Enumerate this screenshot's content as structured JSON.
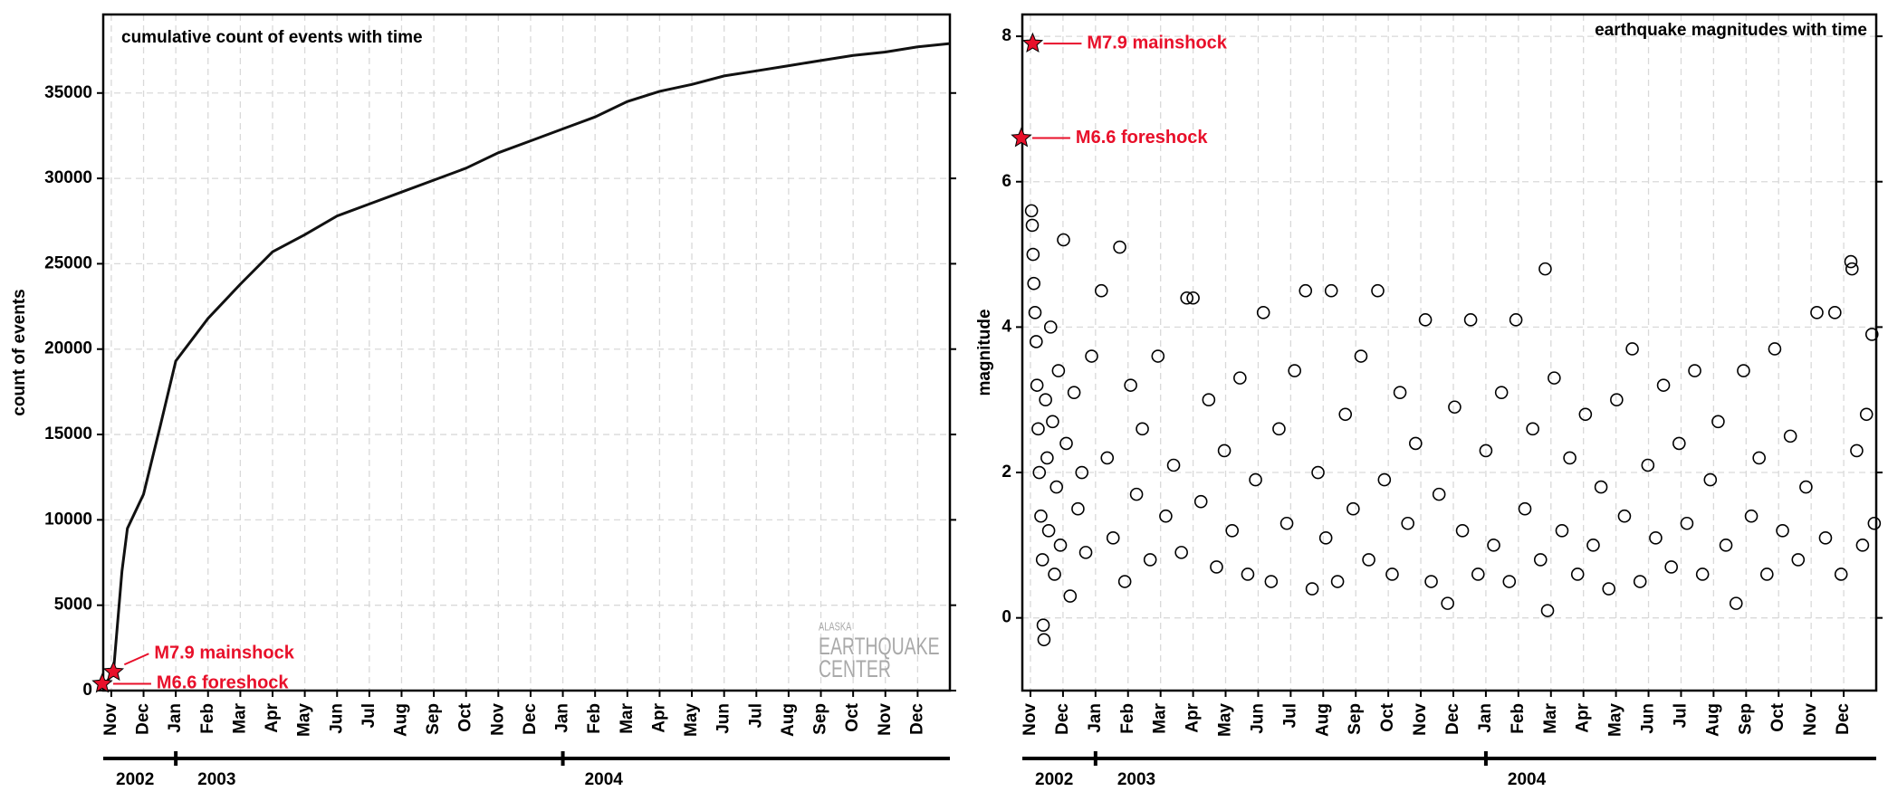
{
  "chart_data": [
    {
      "type": "line",
      "title": "cumulative count of events with time",
      "ylabel": "count of events",
      "color": "#111111",
      "grid": true,
      "x": [
        2002.81,
        2002.839,
        2002.861,
        2002.875,
        2002.9167,
        2002.96,
        2003.0,
        2003.0833,
        2003.1667,
        2003.25,
        2003.3333,
        2003.4167,
        2003.5,
        2003.5833,
        2003.6667,
        2003.75,
        2003.8333,
        2003.9167,
        2004.0,
        2004.0833,
        2004.1667,
        2004.25,
        2004.3333,
        2004.4167,
        2004.5,
        2004.5833,
        2004.6667,
        2004.75,
        2004.8333,
        2004.9167,
        2005.0
      ],
      "values": [
        100,
        1100,
        7000,
        9500,
        11500,
        15500,
        19300,
        21800,
        23800,
        25700,
        26700,
        27800,
        28500,
        29200,
        29900,
        30600,
        31500,
        32200,
        32900,
        33600,
        34500,
        35100,
        35500,
        36000,
        36300,
        36600,
        36900,
        37200,
        37400,
        37700,
        37900
      ],
      "xlim": [
        2002.8125,
        2005.0
      ],
      "ylim": [
        0,
        39600
      ],
      "yticks": [
        0,
        5000,
        10000,
        15000,
        20000,
        25000,
        30000,
        35000
      ],
      "xticks": [
        {
          "value": 2002.8333,
          "label": "Nov"
        },
        {
          "value": 2002.9167,
          "label": "Dec"
        },
        {
          "value": 2003.0,
          "label": "Jan"
        },
        {
          "value": 2003.0833,
          "label": "Feb"
        },
        {
          "value": 2003.1667,
          "label": "Mar"
        },
        {
          "value": 2003.25,
          "label": "Apr"
        },
        {
          "value": 2003.3333,
          "label": "May"
        },
        {
          "value": 2003.4167,
          "label": "Jun"
        },
        {
          "value": 2003.5,
          "label": "Jul"
        },
        {
          "value": 2003.5833,
          "label": "Aug"
        },
        {
          "value": 2003.6667,
          "label": "Sep"
        },
        {
          "value": 2003.75,
          "label": "Oct"
        },
        {
          "value": 2003.8333,
          "label": "Nov"
        },
        {
          "value": 2003.9167,
          "label": "Dec"
        },
        {
          "value": 2004.0,
          "label": "Jan"
        },
        {
          "value": 2004.0833,
          "label": "Feb"
        },
        {
          "value": 2004.1667,
          "label": "Mar"
        },
        {
          "value": 2004.25,
          "label": "Apr"
        },
        {
          "value": 2004.3333,
          "label": "May"
        },
        {
          "value": 2004.4167,
          "label": "Jun"
        },
        {
          "value": 2004.5,
          "label": "Jul"
        },
        {
          "value": 2004.5833,
          "label": "Aug"
        },
        {
          "value": 2004.6667,
          "label": "Sep"
        },
        {
          "value": 2004.75,
          "label": "Oct"
        },
        {
          "value": 2004.8333,
          "label": "Nov"
        },
        {
          "value": 2004.9167,
          "label": "Dec"
        }
      ],
      "year_ticks": [
        {
          "value": 2002.8125,
          "label": "2002"
        },
        {
          "value": 2003.0,
          "label": "2003"
        },
        {
          "value": 2004.0,
          "label": "2004"
        }
      ],
      "annotations": [
        {
          "text": "M7.9 mainshock",
          "x": 2002.839,
          "y": 1100,
          "color": "#e8102a"
        },
        {
          "text": "M6.6 foreshock",
          "x": 2002.81,
          "y": 400,
          "color": "#e8102a"
        }
      ],
      "logo": [
        "ALASKA",
        "EARTHQUAKE",
        "CENTER"
      ]
    },
    {
      "type": "scatter",
      "title": "earthquake magnitudes with time",
      "ylabel": "magnitude",
      "color": "#000000",
      "grid": true,
      "x": [
        2002.836,
        2002.838,
        2002.84,
        2002.842,
        2002.845,
        2002.848,
        2002.85,
        2002.853,
        2002.856,
        2002.86,
        2002.864,
        2002.866,
        2002.868,
        2002.872,
        2002.876,
        2002.88,
        2002.885,
        2002.89,
        2002.895,
        2002.9,
        2002.905,
        2002.91,
        2002.918,
        2002.925,
        2002.935,
        2002.945,
        2002.955,
        2002.965,
        2002.975,
        2002.99,
        2003.015,
        2003.03,
        2003.045,
        2003.062,
        2003.075,
        2003.09,
        2003.105,
        2003.12,
        2003.14,
        2003.16,
        2003.18,
        2003.2,
        2003.22,
        2003.234,
        2003.25,
        2003.27,
        2003.29,
        2003.31,
        2003.33,
        2003.35,
        2003.37,
        2003.39,
        2003.41,
        2003.43,
        2003.45,
        2003.47,
        2003.49,
        2003.51,
        2003.538,
        2003.555,
        2003.57,
        2003.59,
        2003.604,
        2003.62,
        2003.64,
        2003.66,
        2003.68,
        2003.7,
        2003.723,
        2003.74,
        2003.76,
        2003.78,
        2003.8,
        2003.82,
        2003.845,
        2003.86,
        2003.88,
        2003.902,
        2003.92,
        2003.94,
        2003.961,
        2003.98,
        2004.0,
        2004.02,
        2004.04,
        2004.06,
        2004.077,
        2004.1,
        2004.12,
        2004.14,
        2004.152,
        2004.158,
        2004.175,
        2004.195,
        2004.215,
        2004.235,
        2004.255,
        2004.275,
        2004.295,
        2004.315,
        2004.335,
        2004.355,
        2004.375,
        2004.395,
        2004.415,
        2004.435,
        2004.455,
        2004.475,
        2004.495,
        2004.515,
        2004.535,
        2004.555,
        2004.575,
        2004.595,
        2004.615,
        2004.641,
        2004.66,
        2004.68,
        2004.7,
        2004.72,
        2004.74,
        2004.76,
        2004.78,
        2004.8,
        2004.82,
        2004.848,
        2004.87,
        2004.894,
        2004.91,
        2004.935,
        2004.938,
        2004.95,
        2004.965,
        2004.975,
        2004.989,
        2004.995
      ],
      "values": [
        5.6,
        5.4,
        5.0,
        4.6,
        4.2,
        3.8,
        3.2,
        2.6,
        2.0,
        1.4,
        0.8,
        -0.1,
        -0.3,
        3.0,
        2.2,
        1.2,
        4.0,
        2.7,
        0.6,
        1.8,
        3.4,
        1.0,
        5.2,
        2.4,
        0.3,
        3.1,
        1.5,
        2.0,
        0.9,
        3.6,
        4.5,
        2.2,
        1.1,
        5.1,
        0.5,
        3.2,
        1.7,
        2.6,
        0.8,
        3.6,
        1.4,
        2.1,
        0.9,
        4.4,
        4.4,
        1.6,
        3.0,
        0.7,
        2.3,
        1.2,
        3.3,
        0.6,
        1.9,
        4.2,
        0.5,
        2.6,
        1.3,
        3.4,
        4.5,
        0.4,
        2.0,
        1.1,
        4.5,
        0.5,
        2.8,
        1.5,
        3.6,
        0.8,
        4.5,
        1.9,
        0.6,
        3.1,
        1.3,
        2.4,
        4.1,
        0.5,
        1.7,
        0.2,
        2.9,
        1.2,
        4.1,
        0.6,
        2.3,
        1.0,
        3.1,
        0.5,
        4.1,
        1.5,
        2.6,
        0.8,
        4.8,
        0.1,
        3.3,
        1.2,
        2.2,
        0.6,
        2.8,
        1.0,
        1.8,
        0.4,
        3.0,
        1.4,
        3.7,
        0.5,
        2.1,
        1.1,
        3.2,
        0.7,
        2.4,
        1.3,
        3.4,
        0.6,
        1.9,
        2.7,
        1.0,
        0.2,
        3.4,
        1.4,
        2.2,
        0.6,
        3.7,
        1.2,
        2.5,
        0.8,
        1.8,
        4.2,
        1.1,
        4.2,
        0.6,
        4.9,
        4.8,
        2.3,
        1.0,
        2.8,
        3.9,
        1.3
      ],
      "xlim": [
        2002.8125,
        2005.0
      ],
      "ylim": [
        -1,
        8.3
      ],
      "yticks": [
        0,
        2,
        4,
        6,
        8
      ],
      "xticks": [
        {
          "value": 2002.8333,
          "label": "Nov"
        },
        {
          "value": 2002.9167,
          "label": "Dec"
        },
        {
          "value": 2003.0,
          "label": "Jan"
        },
        {
          "value": 2003.0833,
          "label": "Feb"
        },
        {
          "value": 2003.1667,
          "label": "Mar"
        },
        {
          "value": 2003.25,
          "label": "Apr"
        },
        {
          "value": 2003.3333,
          "label": "May"
        },
        {
          "value": 2003.4167,
          "label": "Jun"
        },
        {
          "value": 2003.5,
          "label": "Jul"
        },
        {
          "value": 2003.5833,
          "label": "Aug"
        },
        {
          "value": 2003.6667,
          "label": "Sep"
        },
        {
          "value": 2003.75,
          "label": "Oct"
        },
        {
          "value": 2003.8333,
          "label": "Nov"
        },
        {
          "value": 2003.9167,
          "label": "Dec"
        },
        {
          "value": 2004.0,
          "label": "Jan"
        },
        {
          "value": 2004.0833,
          "label": "Feb"
        },
        {
          "value": 2004.1667,
          "label": "Mar"
        },
        {
          "value": 2004.25,
          "label": "Apr"
        },
        {
          "value": 2004.3333,
          "label": "May"
        },
        {
          "value": 2004.4167,
          "label": "Jun"
        },
        {
          "value": 2004.5,
          "label": "Jul"
        },
        {
          "value": 2004.5833,
          "label": "Aug"
        },
        {
          "value": 2004.6667,
          "label": "Sep"
        },
        {
          "value": 2004.75,
          "label": "Oct"
        },
        {
          "value": 2004.8333,
          "label": "Nov"
        },
        {
          "value": 2004.9167,
          "label": "Dec"
        }
      ],
      "year_ticks": [
        {
          "value": 2002.8125,
          "label": "2002"
        },
        {
          "value": 2003.0,
          "label": "2003"
        },
        {
          "value": 2004.0,
          "label": "2004"
        }
      ],
      "annotations": [
        {
          "text": "M7.9 mainshock",
          "x": 2002.839,
          "y": 7.9,
          "color": "#e8102a"
        },
        {
          "text": "M6.6 foreshock",
          "x": 2002.81,
          "y": 6.6,
          "color": "#e8102a"
        }
      ]
    }
  ]
}
